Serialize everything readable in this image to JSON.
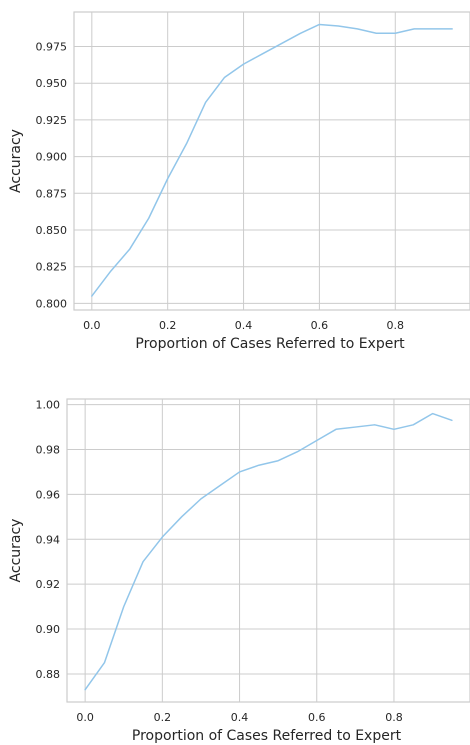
{
  "chart_data": [
    {
      "type": "line",
      "xlabel": "Proportion of Cases Referred to Expert",
      "ylabel": "Accuracy",
      "xlim": [
        -0.047,
        0.997
      ],
      "ylim": [
        0.7955,
        0.9985
      ],
      "x_ticks": [
        {
          "value": 0.0,
          "label": "0.0"
        },
        {
          "value": 0.2,
          "label": "0.2"
        },
        {
          "value": 0.4,
          "label": "0.4"
        },
        {
          "value": 0.6,
          "label": "0.6"
        },
        {
          "value": 0.8,
          "label": "0.8"
        }
      ],
      "y_ticks": [
        {
          "value": 0.8,
          "label": "0.800"
        },
        {
          "value": 0.825,
          "label": "0.825"
        },
        {
          "value": 0.85,
          "label": "0.850"
        },
        {
          "value": 0.875,
          "label": "0.875"
        },
        {
          "value": 0.9,
          "label": "0.900"
        },
        {
          "value": 0.925,
          "label": "0.925"
        },
        {
          "value": 0.95,
          "label": "0.950"
        },
        {
          "value": 0.975,
          "label": "0.975"
        }
      ],
      "grid": true,
      "series": [
        {
          "color": "#92c6ea",
          "x": [
            0.0,
            0.05,
            0.1,
            0.15,
            0.2,
            0.25,
            0.3,
            0.35,
            0.4,
            0.45,
            0.5,
            0.55,
            0.6,
            0.65,
            0.7,
            0.75,
            0.8,
            0.85,
            0.9,
            0.95
          ],
          "y": [
            0.805,
            0.822,
            0.837,
            0.858,
            0.885,
            0.909,
            0.937,
            0.954,
            0.963,
            0.97,
            0.977,
            0.984,
            0.99,
            0.989,
            0.987,
            0.984,
            0.984,
            0.987,
            0.987,
            0.987
          ]
        }
      ]
    },
    {
      "type": "line",
      "xlabel": "Proportion of Cases Referred to Expert",
      "ylabel": "Accuracy",
      "xlim": [
        -0.047,
        0.997
      ],
      "ylim": [
        0.8675,
        1.0025
      ],
      "x_ticks": [
        {
          "value": 0.0,
          "label": "0.0"
        },
        {
          "value": 0.2,
          "label": "0.2"
        },
        {
          "value": 0.4,
          "label": "0.4"
        },
        {
          "value": 0.6,
          "label": "0.6"
        },
        {
          "value": 0.8,
          "label": "0.8"
        }
      ],
      "y_ticks": [
        {
          "value": 0.88,
          "label": "0.88"
        },
        {
          "value": 0.9,
          "label": "0.90"
        },
        {
          "value": 0.92,
          "label": "0.92"
        },
        {
          "value": 0.94,
          "label": "0.94"
        },
        {
          "value": 0.96,
          "label": "0.96"
        },
        {
          "value": 0.98,
          "label": "0.98"
        },
        {
          "value": 1.0,
          "label": "1.00"
        }
      ],
      "grid": true,
      "series": [
        {
          "color": "#92c6ea",
          "x": [
            0.0,
            0.05,
            0.1,
            0.15,
            0.2,
            0.25,
            0.3,
            0.35,
            0.4,
            0.45,
            0.5,
            0.55,
            0.6,
            0.65,
            0.7,
            0.75,
            0.8,
            0.85,
            0.9,
            0.95
          ],
          "y": [
            0.873,
            0.885,
            0.91,
            0.93,
            0.941,
            0.95,
            0.958,
            0.964,
            0.97,
            0.973,
            0.975,
            0.979,
            0.984,
            0.989,
            0.99,
            0.991,
            0.989,
            0.991,
            0.996,
            0.993
          ]
        }
      ]
    }
  ]
}
